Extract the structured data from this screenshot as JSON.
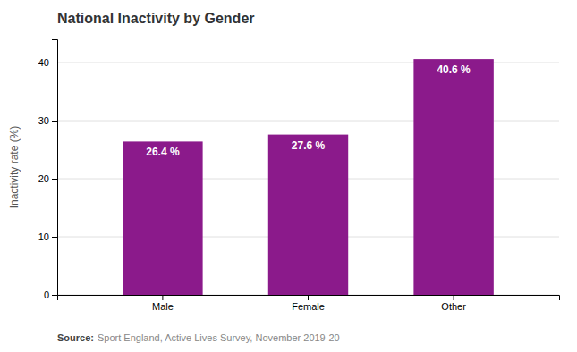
{
  "chart_data": {
    "type": "bar",
    "title": "National Inactivity by Gender",
    "categories": [
      "Male",
      "Female",
      "Other"
    ],
    "values": [
      26.4,
      27.6,
      40.6
    ],
    "value_labels": [
      "26.4 %",
      "27.6 %",
      "40.6 %"
    ],
    "data_labels": true,
    "color": "#8B1A8B",
    "ylabel": "Inactivity rate (%)",
    "ylim": [
      0,
      44
    ],
    "yticks": [
      0,
      10,
      20,
      30,
      40
    ],
    "grid": true,
    "annotations": [
      "Source:",
      "Sport England, Active Lives Survey, November 2019-20"
    ]
  }
}
